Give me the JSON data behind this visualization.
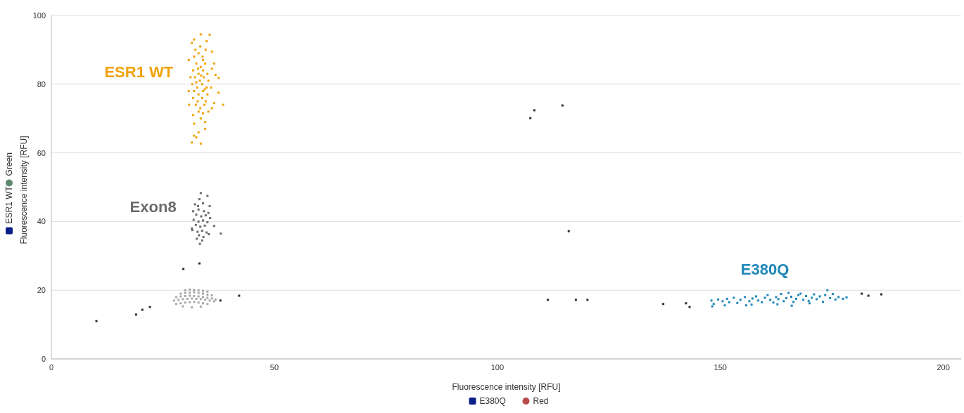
{
  "chart_data": {
    "type": "scatter",
    "xlabel": "Fluorescence intensity [RFU]",
    "ylabel": "Fluorescence intensity [RFU]",
    "annotations": [
      "ESR1 WT",
      "Green",
      "E380Q",
      "Red"
    ],
    "xlim": [
      0,
      204
    ],
    "xticks": [
      0,
      50,
      100,
      150,
      200
    ],
    "ylim": [
      0,
      100
    ],
    "yticks": [
      0,
      20,
      40,
      60,
      80,
      100
    ],
    "grid": "y",
    "marker": "square",
    "series": [
      {
        "name": "ESR1 WT",
        "color": "#f0a30a",
        "x": [
          32,
          33,
          34,
          32.5,
          33.5,
          34.5,
          31.8,
          33,
          34,
          35,
          32.2,
          33.3,
          34.2,
          35.2,
          31.6,
          32.7,
          33.8,
          34.8,
          32,
          33,
          34,
          35,
          31.8,
          32.8,
          33.8,
          34.6,
          32.4,
          33.4,
          34.3,
          33,
          34,
          32.5,
          33.6,
          34.4,
          32.9,
          33.9,
          32.3,
          33.4,
          34.6,
          32,
          33.5,
          35.5,
          31.5,
          34.8,
          36,
          30.8,
          36,
          37.5,
          36.8,
          35.8,
          37.5,
          38.5,
          36.5,
          30.8,
          31.2,
          36,
          33.5,
          34.5,
          32,
          34.5,
          33,
          32.5,
          31.5,
          33.5,
          32,
          31.8,
          35.2,
          30.9,
          36.5
        ],
        "values": [
          88,
          89,
          87,
          86,
          85,
          86,
          84,
          83,
          84,
          83,
          82,
          81,
          82,
          81,
          80,
          79,
          80,
          79,
          78,
          77,
          78,
          77,
          76,
          75,
          76,
          75,
          74,
          73,
          74,
          72,
          71.5,
          80.5,
          82.5,
          78.5,
          84.5,
          88,
          90,
          91,
          90,
          93,
          94.5,
          94.4,
          92,
          92.5,
          89.5,
          87,
          84.5,
          81.8,
          82.7,
          79,
          77.5,
          74,
          74.5,
          78,
          82,
          73,
          70,
          69,
          68.5,
          67,
          66,
          64.5,
          63,
          62.7,
          65,
          71,
          72,
          74,
          86
        ]
      },
      {
        "name": "Exon8",
        "color": "#6b6b6b",
        "x": [
          33.5,
          35,
          33.2,
          32.2,
          34,
          35.5,
          31.8,
          33,
          34.2,
          35.2,
          32.5,
          33.6,
          34.6,
          31.9,
          33,
          34,
          35,
          32.4,
          33.4,
          34.4,
          31.6,
          32.8,
          33.8,
          34.8,
          33.1,
          34.1,
          35.3,
          32.6,
          33.8,
          36.5,
          38,
          31.5,
          33.3,
          35.6,
          32.9
        ],
        "values": [
          48.3,
          47.5,
          46.5,
          45,
          45.3,
          44.5,
          43,
          43.5,
          43,
          42.5,
          42,
          41.5,
          41.8,
          40.5,
          40,
          40.3,
          39.8,
          39,
          38.5,
          38.8,
          37.5,
          37,
          37.3,
          36.8,
          36,
          35.5,
          36.3,
          35,
          34.5,
          38.7,
          36.5,
          38,
          33.5,
          41,
          44.5
        ]
      },
      {
        "color": "#a8a8a8",
        "x": [
          28,
          29,
          30,
          31,
          32,
          33,
          34,
          35,
          27.5,
          28.5,
          29.5,
          30.5,
          31.5,
          32.5,
          33.5,
          34.5,
          35.5,
          36.5,
          28,
          29,
          30,
          31,
          32,
          33,
          34,
          35,
          36,
          36.8,
          29,
          30,
          31,
          32,
          33,
          34,
          35,
          36,
          30,
          31,
          32,
          33,
          34,
          35,
          29.5,
          31.5,
          33.5
        ],
        "values": [
          16,
          16.2,
          16.4,
          16.5,
          16.6,
          16.4,
          16.2,
          16,
          17,
          17.2,
          17.4,
          17.5,
          17.6,
          17.5,
          17.4,
          17.2,
          17,
          16.8,
          18,
          18.2,
          18.3,
          18.4,
          18.3,
          18.2,
          18,
          17.8,
          17.6,
          17.3,
          19,
          19.2,
          19.3,
          19.4,
          19.2,
          19,
          18.7,
          18.5,
          20,
          20.2,
          20.1,
          20,
          19.8,
          19.6,
          15.3,
          15,
          15.2
        ]
      },
      {
        "name": "E380Q",
        "color": "#1f87b8",
        "x": [
          148,
          148.5,
          148.2,
          149.5,
          150.5,
          151.5,
          152,
          153,
          153.8,
          154.5,
          155.5,
          155.8,
          156.5,
          157.2,
          158,
          158.5,
          159.3,
          160,
          160.6,
          161.2,
          161.9,
          162.5,
          163,
          163.6,
          164.2,
          164.8,
          165.3,
          165.9,
          166.4,
          167,
          167.5,
          168,
          168.6,
          169.2,
          169.8,
          170.5,
          171,
          171.6,
          172.3,
          173,
          173.5,
          174,
          174.6,
          175.2,
          175.8,
          176.5,
          177.5,
          178.3,
          157,
          162.8,
          151,
          166,
          170
        ],
        "values": [
          17,
          16,
          15.3,
          17.3,
          16.8,
          17.5,
          16.5,
          17.8,
          16.3,
          17.2,
          18,
          15.6,
          16.8,
          17.6,
          18.2,
          17,
          16.5,
          17.8,
          18.6,
          17.2,
          16.4,
          18,
          17.4,
          18.9,
          16.8,
          17.7,
          19.2,
          18.1,
          16.6,
          17.5,
          18.6,
          19,
          17.2,
          18.3,
          16.9,
          17.8,
          18.8,
          17.4,
          18.2,
          16.6,
          18.6,
          20,
          17.7,
          18.9,
          17.3,
          18,
          17.5,
          17.9,
          15.8,
          15.9,
          15.6,
          15.5,
          16.2
        ]
      },
      {
        "color": "#2b2b2b",
        "x": [
          10.1,
          19,
          20.4,
          22.1,
          29.6,
          33.2,
          37.9,
          42.1,
          107.4,
          108.3,
          114.6,
          116,
          111.3,
          117.6,
          120.2,
          137.2,
          142.3,
          143.1,
          181.7,
          183.2,
          186.1
        ],
        "values": [
          11,
          12.9,
          14.3,
          15.1,
          26.2,
          27.8,
          17,
          18.4,
          70.1,
          72.4,
          73.8,
          37.2,
          17.2,
          17.2,
          17.2,
          16,
          16.2,
          15.1,
          19,
          18.4,
          18.8
        ]
      }
    ]
  }
}
